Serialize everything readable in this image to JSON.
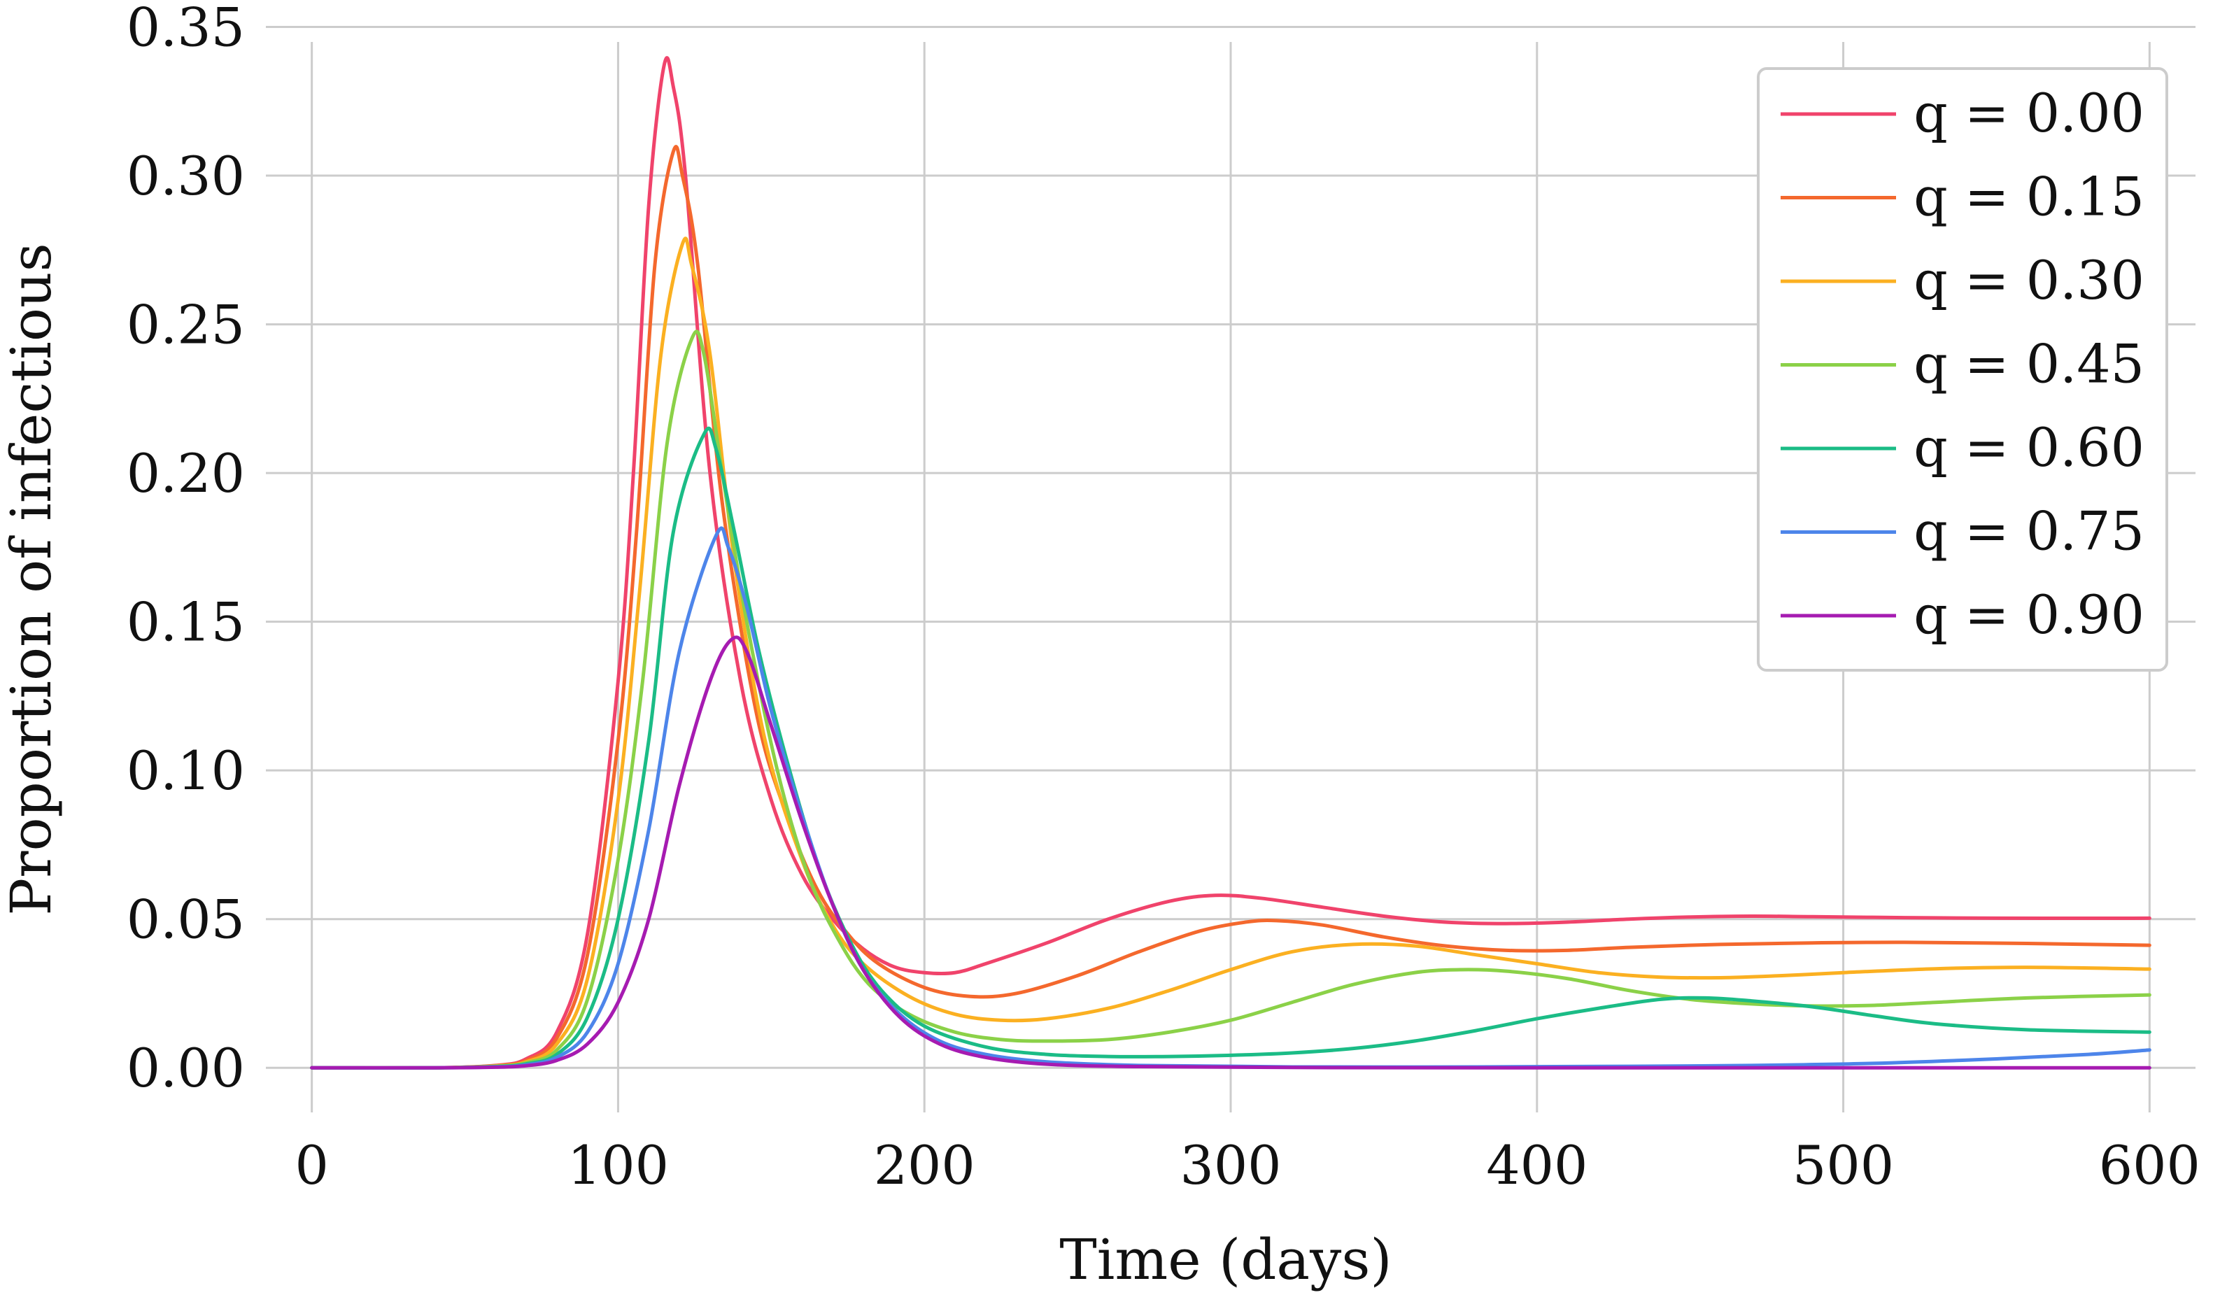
{
  "chart_data": {
    "type": "line",
    "title": "",
    "xlabel": "Time (days)",
    "ylabel": "Proportion of infectious",
    "xlim": [
      -15,
      615
    ],
    "ylim": [
      -0.015,
      0.352
    ],
    "grid": true,
    "legend_position": "top-right",
    "xticks": [
      0,
      100,
      200,
      300,
      400,
      500,
      600
    ],
    "xtick_labels": [
      "0",
      "100",
      "200",
      "300",
      "400",
      "500",
      "600"
    ],
    "yticks": [
      0.0,
      0.05,
      0.1,
      0.15,
      0.2,
      0.25,
      0.3,
      0.35
    ],
    "ytick_labels": [
      "0.00",
      "0.05",
      "0.10",
      "0.15",
      "0.20",
      "0.25",
      "0.30",
      "0.35"
    ],
    "series": [
      {
        "name": "q = 0.00",
        "color": "#f0436b",
        "points": [
          [
            0,
            0
          ],
          [
            40,
            0
          ],
          [
            60,
            0.0008
          ],
          [
            70,
            0.003
          ],
          [
            80,
            0.012
          ],
          [
            90,
            0.045
          ],
          [
            100,
            0.13
          ],
          [
            105,
            0.2
          ],
          [
            110,
            0.29
          ],
          [
            115,
            0.337
          ],
          [
            118,
            0.33
          ],
          [
            122,
            0.3
          ],
          [
            130,
            0.2
          ],
          [
            140,
            0.13
          ],
          [
            150,
            0.09
          ],
          [
            160,
            0.065
          ],
          [
            170,
            0.05
          ],
          [
            180,
            0.04
          ],
          [
            190,
            0.034
          ],
          [
            200,
            0.032
          ],
          [
            210,
            0.032
          ],
          [
            220,
            0.035
          ],
          [
            240,
            0.042
          ],
          [
            260,
            0.05
          ],
          [
            280,
            0.056
          ],
          [
            295,
            0.058
          ],
          [
            310,
            0.057
          ],
          [
            330,
            0.054
          ],
          [
            350,
            0.051
          ],
          [
            370,
            0.049
          ],
          [
            390,
            0.0485
          ],
          [
            410,
            0.049
          ],
          [
            430,
            0.05
          ],
          [
            450,
            0.0507
          ],
          [
            470,
            0.051
          ],
          [
            490,
            0.0508
          ],
          [
            520,
            0.0505
          ],
          [
            550,
            0.0503
          ],
          [
            600,
            0.0503
          ]
        ]
      },
      {
        "name": "q = 0.15",
        "color": "#f4682d",
        "points": [
          [
            0,
            0
          ],
          [
            40,
            0
          ],
          [
            60,
            0.0007
          ],
          [
            70,
            0.0025
          ],
          [
            80,
            0.01
          ],
          [
            90,
            0.038
          ],
          [
            100,
            0.11
          ],
          [
            106,
            0.18
          ],
          [
            112,
            0.27
          ],
          [
            118,
            0.308
          ],
          [
            121,
            0.3
          ],
          [
            126,
            0.27
          ],
          [
            134,
            0.19
          ],
          [
            145,
            0.12
          ],
          [
            155,
            0.085
          ],
          [
            165,
            0.06
          ],
          [
            175,
            0.045
          ],
          [
            185,
            0.035
          ],
          [
            200,
            0.027
          ],
          [
            215,
            0.024
          ],
          [
            230,
            0.025
          ],
          [
            250,
            0.031
          ],
          [
            270,
            0.039
          ],
          [
            290,
            0.046
          ],
          [
            305,
            0.049
          ],
          [
            315,
            0.0495
          ],
          [
            330,
            0.048
          ],
          [
            350,
            0.044
          ],
          [
            370,
            0.041
          ],
          [
            390,
            0.0395
          ],
          [
            410,
            0.0395
          ],
          [
            430,
            0.0405
          ],
          [
            460,
            0.0415
          ],
          [
            490,
            0.042
          ],
          [
            520,
            0.0422
          ],
          [
            560,
            0.0418
          ],
          [
            600,
            0.0412
          ]
        ]
      },
      {
        "name": "q = 0.30",
        "color": "#fbb021",
        "points": [
          [
            0,
            0
          ],
          [
            40,
            0
          ],
          [
            60,
            0.0006
          ],
          [
            70,
            0.002
          ],
          [
            80,
            0.008
          ],
          [
            90,
            0.03
          ],
          [
            100,
            0.09
          ],
          [
            107,
            0.16
          ],
          [
            114,
            0.24
          ],
          [
            121,
            0.277
          ],
          [
            124,
            0.27
          ],
          [
            130,
            0.24
          ],
          [
            138,
            0.17
          ],
          [
            148,
            0.11
          ],
          [
            160,
            0.07
          ],
          [
            170,
            0.048
          ],
          [
            180,
            0.035
          ],
          [
            195,
            0.024
          ],
          [
            210,
            0.018
          ],
          [
            225,
            0.016
          ],
          [
            240,
            0.0165
          ],
          [
            260,
            0.02
          ],
          [
            280,
            0.026
          ],
          [
            300,
            0.033
          ],
          [
            320,
            0.039
          ],
          [
            340,
            0.0415
          ],
          [
            360,
            0.041
          ],
          [
            380,
            0.038
          ],
          [
            400,
            0.035
          ],
          [
            420,
            0.032
          ],
          [
            440,
            0.0305
          ],
          [
            460,
            0.0303
          ],
          [
            480,
            0.031
          ],
          [
            500,
            0.032
          ],
          [
            530,
            0.0333
          ],
          [
            560,
            0.0338
          ],
          [
            600,
            0.0332
          ]
        ]
      },
      {
        "name": "q = 0.45",
        "color": "#8bd148",
        "points": [
          [
            0,
            0
          ],
          [
            40,
            0
          ],
          [
            60,
            0.0005
          ],
          [
            70,
            0.0017
          ],
          [
            80,
            0.006
          ],
          [
            90,
            0.023
          ],
          [
            100,
            0.07
          ],
          [
            108,
            0.13
          ],
          [
            116,
            0.21
          ],
          [
            124,
            0.245
          ],
          [
            128,
            0.24
          ],
          [
            134,
            0.2
          ],
          [
            142,
            0.15
          ],
          [
            152,
            0.1
          ],
          [
            162,
            0.065
          ],
          [
            172,
            0.043
          ],
          [
            182,
            0.028
          ],
          [
            195,
            0.018
          ],
          [
            210,
            0.012
          ],
          [
            225,
            0.0095
          ],
          [
            240,
            0.009
          ],
          [
            260,
            0.0095
          ],
          [
            280,
            0.012
          ],
          [
            300,
            0.016
          ],
          [
            320,
            0.022
          ],
          [
            340,
            0.028
          ],
          [
            360,
            0.032
          ],
          [
            375,
            0.033
          ],
          [
            390,
            0.0325
          ],
          [
            410,
            0.03
          ],
          [
            430,
            0.026
          ],
          [
            450,
            0.023
          ],
          [
            470,
            0.0215
          ],
          [
            490,
            0.0208
          ],
          [
            510,
            0.021
          ],
          [
            530,
            0.022
          ],
          [
            560,
            0.0235
          ],
          [
            600,
            0.0245
          ]
        ]
      },
      {
        "name": "q = 0.60",
        "color": "#1bbc86",
        "points": [
          [
            0,
            0
          ],
          [
            40,
            0
          ],
          [
            60,
            0.0004
          ],
          [
            70,
            0.0013
          ],
          [
            80,
            0.0045
          ],
          [
            90,
            0.017
          ],
          [
            100,
            0.05
          ],
          [
            110,
            0.11
          ],
          [
            118,
            0.18
          ],
          [
            128,
            0.213
          ],
          [
            132,
            0.208
          ],
          [
            138,
            0.18
          ],
          [
            146,
            0.14
          ],
          [
            156,
            0.1
          ],
          [
            166,
            0.066
          ],
          [
            176,
            0.042
          ],
          [
            186,
            0.026
          ],
          [
            200,
            0.014
          ],
          [
            220,
            0.007
          ],
          [
            240,
            0.0045
          ],
          [
            260,
            0.0038
          ],
          [
            280,
            0.0038
          ],
          [
            300,
            0.0042
          ],
          [
            320,
            0.005
          ],
          [
            340,
            0.0065
          ],
          [
            360,
            0.009
          ],
          [
            380,
            0.0125
          ],
          [
            400,
            0.0165
          ],
          [
            420,
            0.02
          ],
          [
            440,
            0.023
          ],
          [
            455,
            0.0235
          ],
          [
            470,
            0.0225
          ],
          [
            490,
            0.0205
          ],
          [
            510,
            0.0175
          ],
          [
            530,
            0.0148
          ],
          [
            560,
            0.0128
          ],
          [
            600,
            0.012
          ]
        ]
      },
      {
        "name": "q = 0.75",
        "color": "#4d85ea",
        "points": [
          [
            0,
            0
          ],
          [
            40,
            0
          ],
          [
            60,
            0.0003
          ],
          [
            70,
            0.001
          ],
          [
            80,
            0.0035
          ],
          [
            90,
            0.012
          ],
          [
            100,
            0.035
          ],
          [
            110,
            0.08
          ],
          [
            120,
            0.14
          ],
          [
            132,
            0.179
          ],
          [
            136,
            0.175
          ],
          [
            142,
            0.155
          ],
          [
            150,
            0.12
          ],
          [
            160,
            0.085
          ],
          [
            170,
            0.055
          ],
          [
            180,
            0.033
          ],
          [
            192,
            0.018
          ],
          [
            205,
            0.009
          ],
          [
            220,
            0.0045
          ],
          [
            240,
            0.002
          ],
          [
            270,
            0.0008
          ],
          [
            320,
            0.0003
          ],
          [
            380,
            0.0003
          ],
          [
            430,
            0.0005
          ],
          [
            470,
            0.0008
          ],
          [
            510,
            0.0015
          ],
          [
            550,
            0.003
          ],
          [
            580,
            0.0045
          ],
          [
            600,
            0.006
          ]
        ]
      },
      {
        "name": "q = 0.90",
        "color": "#a61bb1",
        "points": [
          [
            0,
            0
          ],
          [
            40,
            0
          ],
          [
            60,
            0.0002
          ],
          [
            70,
            0.0007
          ],
          [
            80,
            0.0025
          ],
          [
            90,
            0.008
          ],
          [
            100,
            0.022
          ],
          [
            110,
            0.05
          ],
          [
            120,
            0.095
          ],
          [
            130,
            0.13
          ],
          [
            137,
            0.144
          ],
          [
            142,
            0.14
          ],
          [
            150,
            0.115
          ],
          [
            160,
            0.083
          ],
          [
            170,
            0.055
          ],
          [
            180,
            0.033
          ],
          [
            192,
            0.017
          ],
          [
            205,
            0.008
          ],
          [
            220,
            0.0035
          ],
          [
            240,
            0.0012
          ],
          [
            270,
            0.0004
          ],
          [
            320,
            0.0001
          ],
          [
            400,
            0
          ],
          [
            600,
            0
          ]
        ]
      }
    ]
  }
}
